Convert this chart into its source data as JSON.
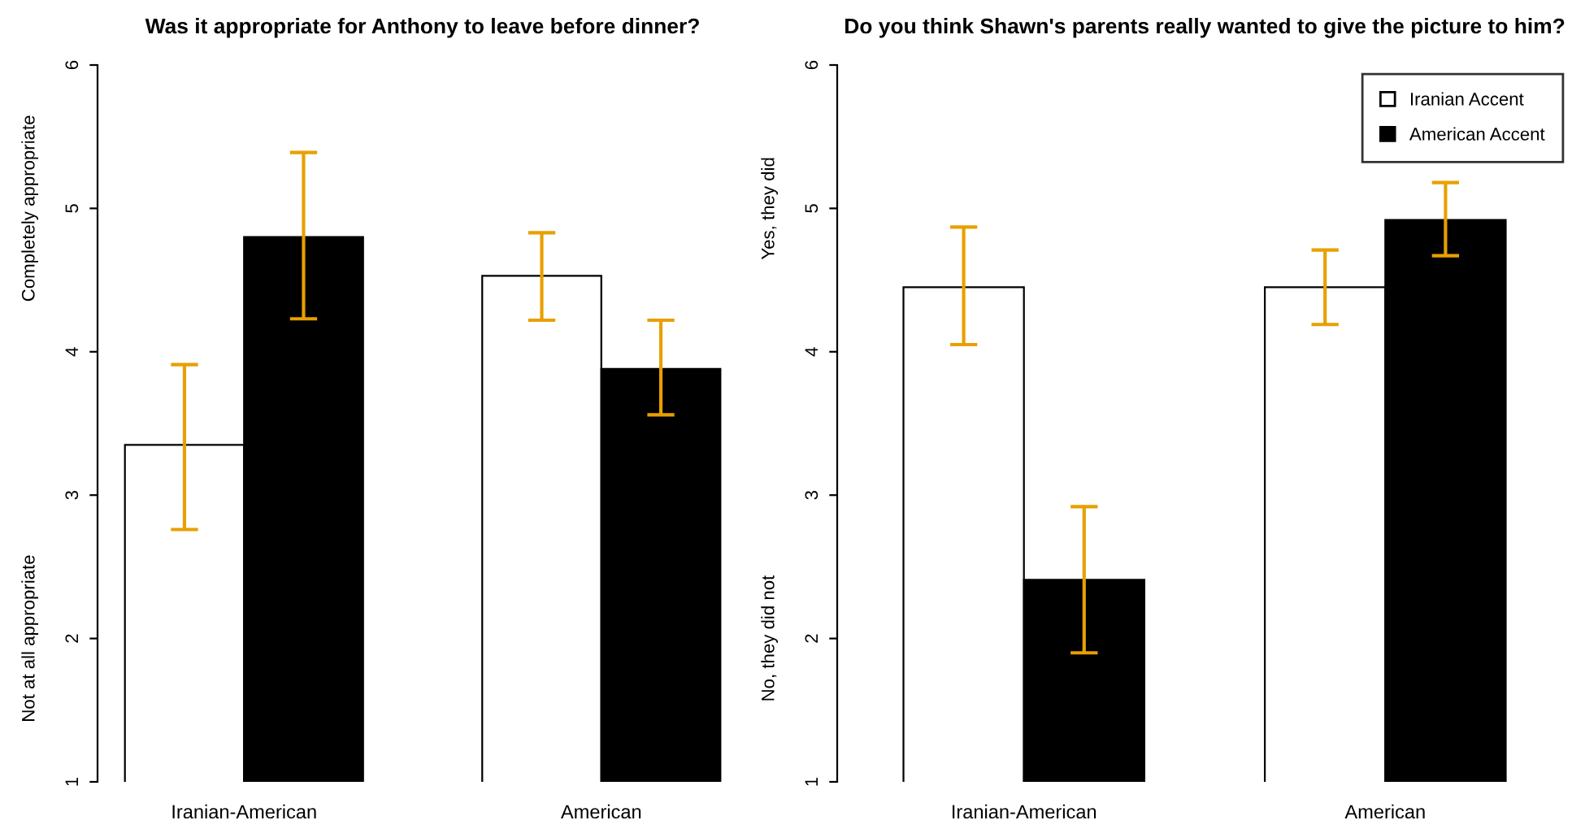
{
  "chart_data": [
    {
      "type": "bar",
      "title": "Was it appropriate for Anthony to leave before dinner?",
      "categories": [
        "Iranian-American",
        "American"
      ],
      "ylim": [
        1,
        6
      ],
      "yticks": [
        1,
        2,
        3,
        4,
        5,
        6
      ],
      "grid": false,
      "legend": false,
      "series": [
        {
          "color": "#ffffff",
          "values": [
            3.35,
            4.53
          ],
          "errors": [
            [
              2.76,
              3.91
            ],
            [
              4.22,
              4.83
            ]
          ]
        },
        {
          "color": "#000000",
          "values": [
            4.8,
            3.88
          ],
          "errors": [
            [
              4.23,
              5.39
            ],
            [
              3.56,
              4.22
            ]
          ]
        }
      ],
      "annotations": [
        "Completely appropriate",
        "Not at all appropriate"
      ]
    },
    {
      "type": "bar",
      "title": "Do you think Shawn's parents really wanted to give the picture to him?",
      "categories": [
        "Iranian-American",
        "American"
      ],
      "ylim": [
        1,
        6
      ],
      "yticks": [
        1,
        2,
        3,
        4,
        5,
        6
      ],
      "grid": false,
      "legend": "top right",
      "series": [
        {
          "name": "Iranian Accent",
          "color": "#ffffff",
          "values": [
            4.45,
            4.45
          ],
          "errors": [
            [
              4.05,
              4.87
            ],
            [
              4.19,
              4.71
            ]
          ]
        },
        {
          "name": "American Accent",
          "color": "#000000",
          "values": [
            2.41,
            4.92
          ],
          "errors": [
            [
              1.9,
              2.92
            ],
            [
              4.67,
              5.18
            ]
          ]
        }
      ],
      "annotations": [
        "Yes, they did",
        "No, they did not"
      ]
    }
  ]
}
